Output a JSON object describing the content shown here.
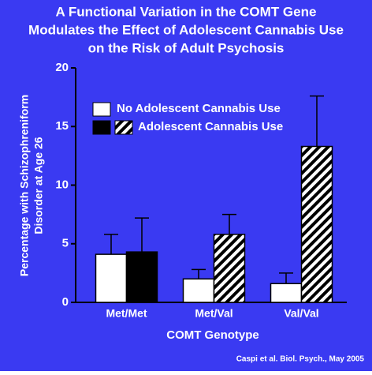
{
  "chart_data": {
    "type": "bar",
    "title": [
      "A Functional Variation in the COMT Gene",
      "Modulates the Effect of Adolescent Cannabis Use",
      "on the Risk of Adult Psychosis"
    ],
    "xlabel": "COMT Genotype",
    "ylabel": [
      "Percentage with Schizophreniform",
      "Disorder at Age 26"
    ],
    "source": "Caspi et al. Biol. Psych., May 2005",
    "categories": [
      "Met/Met",
      "Met/Val",
      "Val/Val"
    ],
    "series": [
      {
        "name": "No Adolescent Cannabis Use",
        "color": "#ffffff",
        "fills": [
          "solid",
          "solid",
          "solid"
        ],
        "values": [
          4.1,
          2.0,
          1.6
        ],
        "errors": [
          1.7,
          0.8,
          0.9
        ]
      },
      {
        "name": "Adolescent Cannabis Use",
        "color": "#000000",
        "fills": [
          "solid",
          "hatched",
          "hatched"
        ],
        "values": [
          4.3,
          5.8,
          13.3
        ],
        "errors": [
          2.9,
          1.7,
          4.3
        ]
      }
    ],
    "ylim": [
      0,
      20
    ],
    "yticks": [
      0,
      5,
      10,
      15,
      20
    ],
    "background": "#3a3af2"
  }
}
